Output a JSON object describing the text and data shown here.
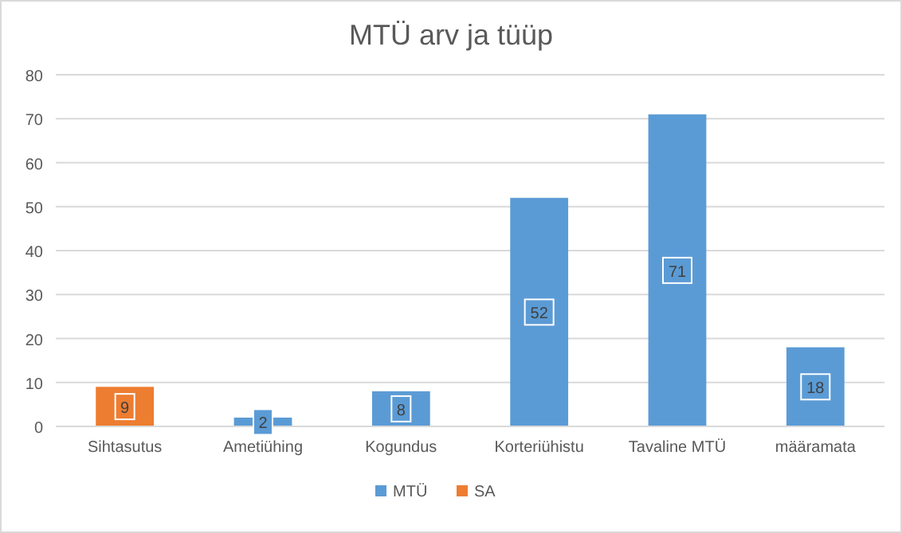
{
  "chart_data": {
    "type": "bar",
    "title": "MTÜ arv ja tüüp",
    "categories": [
      "Sihtasutus",
      "Ametiühing",
      "Kogundus",
      "Korteriühistu",
      "Tavaline MTÜ",
      "määramata"
    ],
    "series": [
      {
        "name": "MTÜ",
        "color": "#5b9bd5",
        "values": [
          null,
          2,
          8,
          52,
          71,
          18
        ]
      },
      {
        "name": "SA",
        "color": "#ed7d31",
        "values": [
          9,
          null,
          null,
          null,
          null,
          null
        ]
      }
    ],
    "stacked": true,
    "ylim": [
      0,
      80
    ],
    "yticks": [
      0,
      10,
      20,
      30,
      40,
      50,
      60,
      70,
      80
    ],
    "grid": "y",
    "legend": "bottom",
    "data_labels": true
  }
}
